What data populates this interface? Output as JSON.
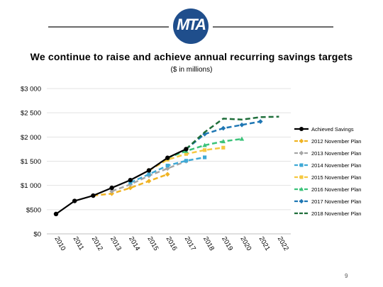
{
  "header": {
    "logo_text": "MTA",
    "title": "We continue to raise and achieve annual recurring savings targets",
    "subtitle": "($ in millions)"
  },
  "page_number": "9",
  "colors": {
    "logo_blue": "#1f4e8c",
    "achieved": "#000000",
    "plan_2012": "#f0b323",
    "plan_2013": "#a6a6a6",
    "plan_2014": "#3fa9d6",
    "plan_2015": "#f5c842",
    "plan_2016": "#3cc37a",
    "plan_2017": "#1f77b4",
    "plan_2018": "#1e6e3a"
  },
  "chart_data": {
    "type": "line",
    "y_tick_labels": [
      "$0",
      "$500",
      "$1 000",
      "$1 500",
      "$2 000",
      "$2 500",
      "$3 000"
    ],
    "y_ticks": [
      0,
      500,
      1000,
      1500,
      2000,
      2500,
      3000
    ],
    "x_tick_labels": [
      "2010",
      "2011",
      "2012",
      "2013",
      "2014",
      "2015",
      "2016",
      "2017",
      "2018",
      "2019",
      "2020",
      "2021",
      "2022"
    ],
    "ylim": [
      0,
      3000
    ],
    "grid": true,
    "legend_position": "right",
    "series": [
      {
        "name": "Achieved Savings",
        "color": "#000000",
        "dashed": false,
        "marker": "circle",
        "x": [
          2010,
          2011,
          2012,
          2013,
          2014,
          2015,
          2016,
          2017
        ],
        "values": [
          410,
          680,
          790,
          950,
          1110,
          1310,
          1570,
          1750
        ]
      },
      {
        "name": "2012 November Plan",
        "color": "#f0b323",
        "dashed": true,
        "marker": "diamond",
        "x": [
          2012,
          2013,
          2014,
          2015,
          2016
        ],
        "values": [
          790,
          830,
          950,
          1090,
          1230
        ]
      },
      {
        "name": "2013 November Plan",
        "color": "#a6a6a6",
        "dashed": true,
        "marker": "diamond",
        "x": [
          2013,
          2014,
          2015,
          2016,
          2017
        ],
        "values": [
          880,
          1020,
          1200,
          1350,
          1500
        ]
      },
      {
        "name": "2014 November Plan",
        "color": "#3fa9d6",
        "dashed": true,
        "marker": "square",
        "x": [
          2014,
          2015,
          2016,
          2017,
          2018
        ],
        "values": [
          1060,
          1230,
          1410,
          1510,
          1580
        ]
      },
      {
        "name": "2015 November Plan",
        "color": "#f5c842",
        "dashed": true,
        "marker": "square",
        "x": [
          2015,
          2016,
          2017,
          2018,
          2019
        ],
        "values": [
          1310,
          1530,
          1650,
          1730,
          1780
        ]
      },
      {
        "name": "2016 November Plan",
        "color": "#3cc37a",
        "dashed": true,
        "marker": "triangle",
        "x": [
          2016,
          2017,
          2018,
          2019,
          2020
        ],
        "values": [
          1570,
          1710,
          1830,
          1910,
          1960
        ]
      },
      {
        "name": "2017 November Plan",
        "color": "#1f77b4",
        "dashed": true,
        "marker": "diamond",
        "x": [
          2017,
          2018,
          2019,
          2020,
          2021
        ],
        "values": [
          1750,
          2060,
          2180,
          2250,
          2320
        ]
      },
      {
        "name": "2018 November Plan",
        "color": "#1e6e3a",
        "dashed": true,
        "marker": "none",
        "x": [
          2017,
          2018,
          2019,
          2020,
          2021,
          2022
        ],
        "values": [
          1750,
          2100,
          2380,
          2360,
          2410,
          2420
        ]
      }
    ]
  }
}
